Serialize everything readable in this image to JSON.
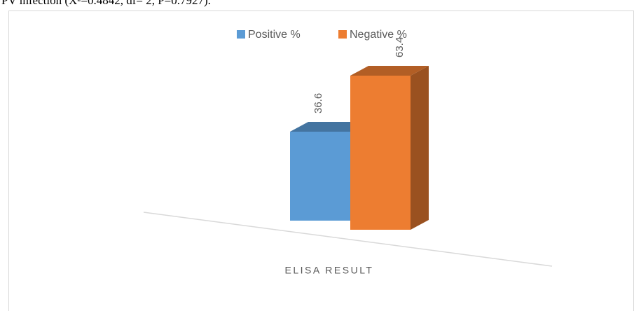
{
  "chart_data": {
    "type": "bar3d",
    "caption": "PV infection (X²=0.4842, df= 2, P=0.7927).",
    "categories": [
      "ELISA RESULT"
    ],
    "series": [
      {
        "name": "Positive %",
        "color": "#5b9bd5",
        "values": [
          36.6
        ]
      },
      {
        "name": "Negative %",
        "color": "#ed7d31",
        "values": [
          63.4
        ]
      }
    ]
  }
}
